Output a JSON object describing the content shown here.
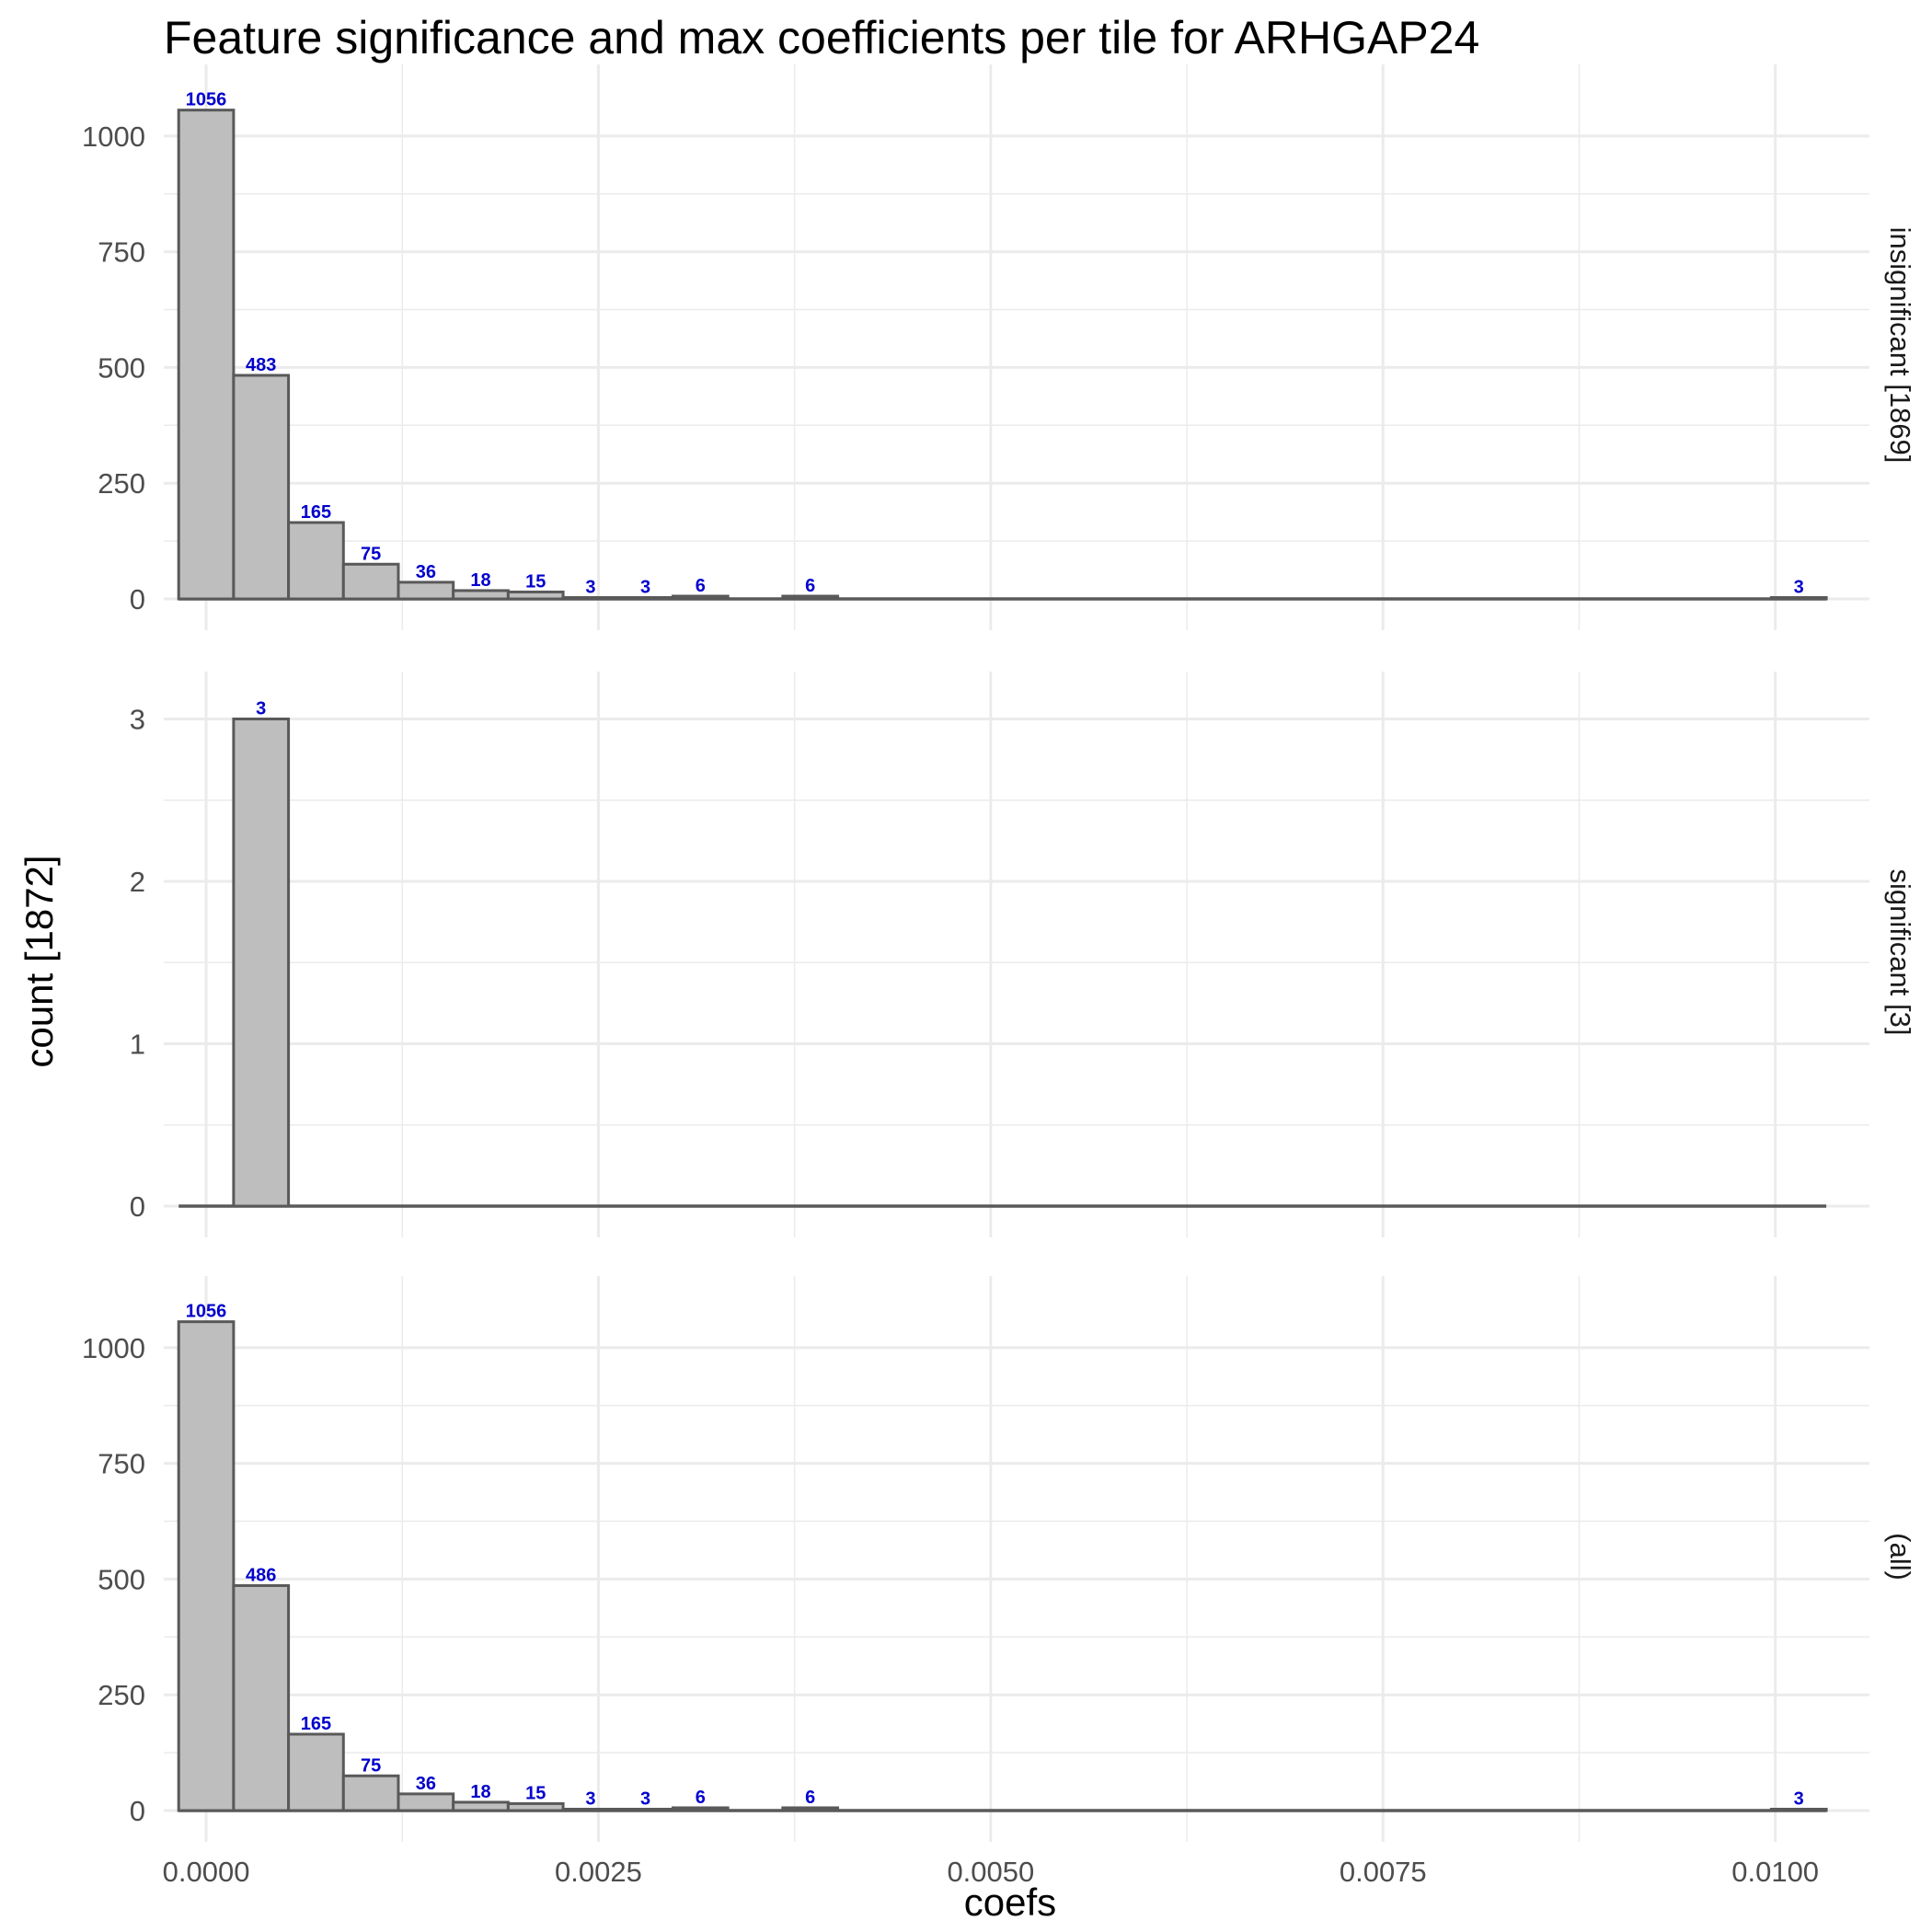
{
  "chart_data": {
    "type": "bar",
    "title": "Feature significance and max coefficients per tile for ARHGAP24",
    "xlabel": "coefs",
    "ylabel": "count [1872]",
    "xlim": [
      -0.00027,
      0.0106
    ],
    "x_ticks": [
      "0.0000",
      "0.0025",
      "0.0050",
      "0.0075",
      "0.0100"
    ],
    "x_tick_values": [
      0,
      0.0025,
      0.005,
      0.0075,
      0.01
    ],
    "bin_width": 0.00035,
    "bin_centers": [
      0,
      0.00035,
      0.0007,
      0.00105,
      0.0014,
      0.00175,
      0.0021,
      0.00245,
      0.0028,
      0.00315,
      0.0035,
      0.00385,
      0.0042,
      0.00455,
      0.0049,
      0.00525,
      0.0056,
      0.00595,
      0.0063,
      0.00665,
      0.007,
      0.00735,
      0.0077,
      0.00805,
      0.0084,
      0.00875,
      0.0091,
      0.00945,
      0.0098,
      0.01015
    ],
    "grid": true,
    "colors": {
      "bar_fill": "#bebebe",
      "bar_stroke": "#595959",
      "label": "#0000cd",
      "grid": "#ebebeb"
    },
    "panels": [
      {
        "strip_label": "insignificant [1869]",
        "ylim": [
          0,
          1105
        ],
        "y_ticks": [
          0,
          250,
          500,
          750,
          1000
        ],
        "y_tick_labels": [
          "0",
          "250",
          "500",
          "750",
          "1000"
        ],
        "counts": [
          1056,
          483,
          165,
          75,
          36,
          18,
          15,
          3,
          3,
          6,
          0,
          6,
          0,
          0,
          0,
          0,
          0,
          0,
          0,
          0,
          0,
          0,
          0,
          0,
          0,
          0,
          0,
          0,
          0,
          3
        ],
        "labels": [
          "1056",
          "483",
          "165",
          "75",
          "36",
          "18",
          "15",
          "3",
          "3",
          "6",
          "",
          "6",
          "",
          "",
          "",
          "",
          "",
          "",
          "",
          "",
          "",
          "",
          "",
          "",
          "",
          "",
          "",
          "",
          "",
          "3"
        ]
      },
      {
        "strip_label": "significant [3]",
        "ylim": [
          0,
          3.15
        ],
        "y_ticks": [
          0,
          1,
          2,
          3
        ],
        "y_tick_labels": [
          "0",
          "1",
          "2",
          "3"
        ],
        "counts": [
          0,
          3,
          0,
          0,
          0,
          0,
          0,
          0,
          0,
          0,
          0,
          0,
          0,
          0,
          0,
          0,
          0,
          0,
          0,
          0,
          0,
          0,
          0,
          0,
          0,
          0,
          0,
          0,
          0,
          0
        ],
        "labels": [
          "",
          "3",
          "",
          "",
          "",
          "",
          "",
          "",
          "",
          "",
          "",
          "",
          "",
          "",
          "",
          "",
          "",
          "",
          "",
          "",
          "",
          "",
          "",
          "",
          "",
          "",
          "",
          "",
          "",
          ""
        ]
      },
      {
        "strip_label": "(all)",
        "ylim": [
          0,
          1105
        ],
        "y_ticks": [
          0,
          250,
          500,
          750,
          1000
        ],
        "y_tick_labels": [
          "0",
          "250",
          "500",
          "750",
          "1000"
        ],
        "counts": [
          1056,
          486,
          165,
          75,
          36,
          18,
          15,
          3,
          3,
          6,
          0,
          6,
          0,
          0,
          0,
          0,
          0,
          0,
          0,
          0,
          0,
          0,
          0,
          0,
          0,
          0,
          0,
          0,
          0,
          3
        ],
        "labels": [
          "1056",
          "486",
          "165",
          "75",
          "36",
          "18",
          "15",
          "3",
          "3",
          "6",
          "",
          "6",
          "",
          "",
          "",
          "",
          "",
          "",
          "",
          "",
          "",
          "",
          "",
          "",
          "",
          "",
          "",
          "",
          "",
          "3"
        ]
      }
    ]
  }
}
